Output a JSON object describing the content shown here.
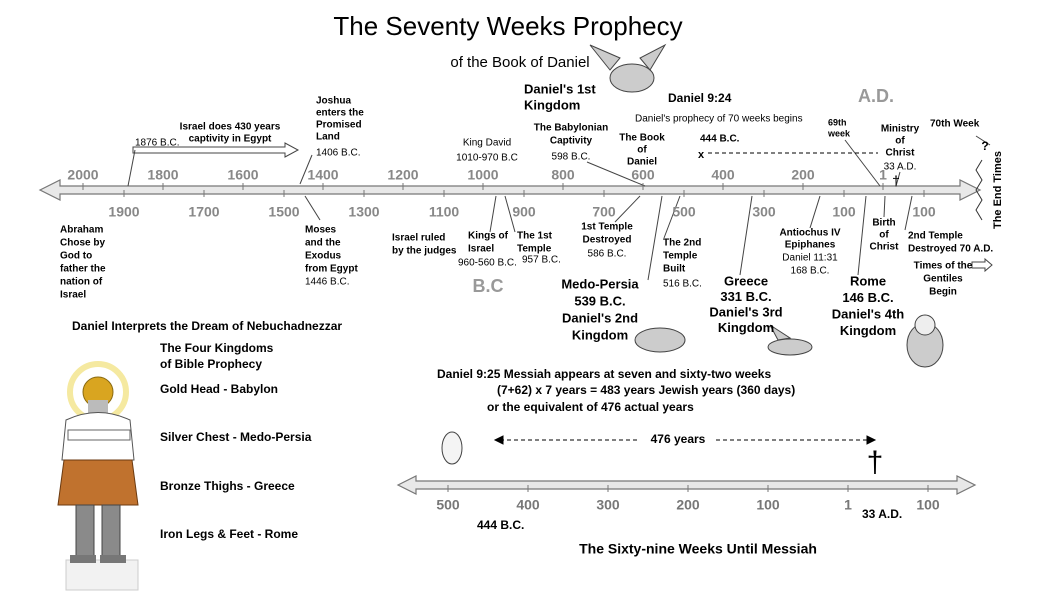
{
  "title": "The Seventy Weeks Prophecy",
  "subtitle": "of the Book of Daniel",
  "era_labels": {
    "ad": "A.D.",
    "bc": "B.C"
  },
  "timeline": {
    "upper_ticks": [
      "2000",
      "1800",
      "1600",
      "1400",
      "1200",
      "1000",
      "800",
      "600",
      "400",
      "200",
      "1"
    ],
    "lower_ticks": [
      "1900",
      "1700",
      "1500",
      "1300",
      "1100",
      "900",
      "700",
      "500",
      "300",
      "100",
      "100"
    ],
    "end_label": "The End Times"
  },
  "annotations": [
    {
      "lines": [
        "Abraham",
        "Chose by",
        "God to",
        "father the",
        "nation of",
        "Israel"
      ]
    },
    {
      "lines": [
        "1876 B.C."
      ]
    },
    {
      "lines": [
        "Israel does 430 years",
        "captivity in Egypt"
      ]
    },
    {
      "lines": [
        "Joshua",
        "enters the",
        "Promised",
        "Land"
      ]
    },
    {
      "lines": [
        "1406 B.C."
      ]
    },
    {
      "lines": [
        "Moses",
        "and the",
        "Exodus",
        "from Egypt"
      ]
    },
    {
      "lines": [
        "1446 B.C."
      ]
    },
    {
      "lines": [
        "Israel ruled",
        "by the judges"
      ]
    },
    {
      "lines": [
        "Kings of",
        "Israel"
      ]
    },
    {
      "lines": [
        "960-560 B.C."
      ]
    },
    {
      "lines": [
        "The 1st",
        "Temple"
      ]
    },
    {
      "lines": [
        "957 B.C."
      ]
    },
    {
      "lines": [
        "King David"
      ]
    },
    {
      "lines": [
        "1010-970 B.C"
      ]
    },
    {
      "lines": [
        "The Babylonian",
        "Captivity"
      ]
    },
    {
      "lines": [
        "598 B.C."
      ]
    },
    {
      "lines": [
        "The Book",
        "of",
        "Daniel"
      ]
    },
    {
      "lines": [
        "1st Temple",
        "Destroyed"
      ]
    },
    {
      "lines": [
        "586 B.C."
      ]
    },
    {
      "lines": [
        "The 2nd",
        "Temple",
        "Built"
      ]
    },
    {
      "lines": [
        "516 B.C."
      ]
    },
    {
      "lines": [
        "Daniel's 1st",
        "Kingdom"
      ]
    },
    {
      "lines": [
        "Daniel 9:24"
      ]
    },
    {
      "lines": [
        "Daniel's prophecy of 70 weeks begins"
      ]
    },
    {
      "lines": [
        "444 B.C."
      ]
    },
    {
      "lines": [
        "x"
      ]
    },
    {
      "lines": [
        "69th",
        "week"
      ]
    },
    {
      "lines": [
        "Ministry",
        "of",
        "Christ"
      ]
    },
    {
      "lines": [
        "33 A.D."
      ]
    },
    {
      "lines": [
        "70th Week"
      ]
    },
    {
      "lines": [
        "?"
      ]
    },
    {
      "lines": [
        "Antiochus IV",
        "Epiphanes"
      ]
    },
    {
      "lines": [
        "Daniel 11:31",
        "168 B.C."
      ]
    },
    {
      "lines": [
        "Birth",
        "of",
        "Christ"
      ]
    },
    {
      "lines": [
        "2nd Temple",
        "Destroyed 70 A.D."
      ]
    },
    {
      "lines": [
        "Times of the",
        "Gentiles",
        "Begin"
      ]
    },
    {
      "lines": [
        "Medo-Persia",
        "539 B.C.",
        "Daniel's 2nd",
        "Kingdom"
      ]
    },
    {
      "lines": [
        "Greece",
        "331 B.C.",
        "Daniel's 3rd",
        "Kingdom"
      ]
    },
    {
      "lines": [
        "Rome",
        "146 B.C.",
        "Daniel's 4th",
        "Kingdom"
      ]
    },
    {
      "lines": [
        "Daniel Interprets the Dream of Nebuchadnezzar"
      ]
    },
    {
      "lines": [
        "The Four Kingdoms",
        " of Bible Prophecy"
      ]
    },
    {
      "lines": [
        "Gold Head - Babylon"
      ]
    },
    {
      "lines": [
        "Silver Chest - Medo-Persia"
      ]
    },
    {
      "lines": [
        "Bronze Thighs - Greece"
      ]
    },
    {
      "lines": [
        "Iron Legs & Feet - Rome"
      ]
    },
    {
      "lines": [
        "Daniel 9:25  Messiah appears at seven and sixty-two weeks"
      ]
    },
    {
      "lines": [
        "(7+62) x 7 years = 483 years Jewish years (360 days)"
      ]
    },
    {
      "lines": [
        "or the equivalent of 476 actual years"
      ]
    },
    {
      "lines": [
        "476 years"
      ]
    },
    {
      "lines": [
        "444 B.C."
      ]
    },
    {
      "lines": [
        "33 A.D."
      ]
    },
    {
      "lines": [
        "The Sixty-nine Weeks Until Messiah"
      ]
    }
  ],
  "messiah_timeline": {
    "ticks": [
      "500",
      "400",
      "300",
      "200",
      "100",
      "1",
      "100"
    ]
  }
}
